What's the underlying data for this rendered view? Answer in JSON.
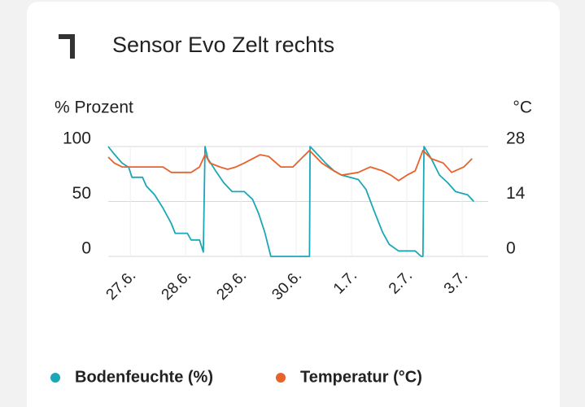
{
  "chart_data": {
    "type": "line",
    "title": "Sensor Evo Zelt rechts",
    "ylabel": "% Prozent",
    "y2label": "°C",
    "xlim": [
      -0.4,
      6.47
    ],
    "xticks": [
      {
        "value": 0,
        "label": "27.6."
      },
      {
        "value": 1,
        "label": "28.6."
      },
      {
        "value": 2,
        "label": "29.6."
      },
      {
        "value": 3,
        "label": "30.6."
      },
      {
        "value": 4,
        "label": "1.7."
      },
      {
        "value": 5,
        "label": "2.7."
      },
      {
        "value": 6,
        "label": "3.7."
      }
    ],
    "ylim": [
      0,
      100
    ],
    "yticks": [
      0,
      50,
      100
    ],
    "y2lim": [
      0,
      28
    ],
    "y2ticks": [
      0,
      14,
      28
    ],
    "grid": true,
    "series": [
      {
        "name": "Bodenfeuchte (%)",
        "color": "#1ba7b5",
        "x": [
          -0.4,
          -0.29,
          -0.15,
          -0.03,
          0.03,
          0.22,
          0.29,
          0.44,
          0.59,
          0.74,
          0.81,
          1.03,
          1.1,
          1.25,
          1.32,
          1.35,
          1.4,
          1.54,
          1.69,
          1.84,
          2.06,
          2.21,
          2.32,
          2.43,
          2.54,
          3.24,
          3.25,
          3.38,
          3.53,
          3.68,
          3.82,
          4.12,
          4.26,
          4.41,
          4.56,
          4.68,
          4.85,
          5.15,
          5.26,
          5.29,
          5.31,
          5.44,
          5.59,
          5.74,
          5.88,
          6.1,
          6.21
        ],
        "values": [
          100,
          93,
          85,
          81,
          72,
          72,
          64,
          56,
          44,
          30,
          21,
          21,
          15,
          15,
          4,
          100,
          89,
          78,
          67,
          59,
          59,
          52,
          39,
          22,
          0,
          0,
          100,
          93,
          85,
          78,
          74,
          70,
          61,
          41,
          22,
          11,
          5,
          5,
          0,
          0,
          100,
          89,
          74,
          67,
          59,
          56,
          50
        ]
      },
      {
        "name": "Temperatur (°C)",
        "color": "#e8622c",
        "axis": "y2",
        "x": [
          -0.4,
          -0.29,
          -0.15,
          0.59,
          0.74,
          1.1,
          1.25,
          1.35,
          1.44,
          1.62,
          1.76,
          1.91,
          2.06,
          2.21,
          2.35,
          2.5,
          2.72,
          2.94,
          3.09,
          3.24,
          3.46,
          3.68,
          3.82,
          4.12,
          4.34,
          4.56,
          4.71,
          4.85,
          5.0,
          5.15,
          5.29,
          5.44,
          5.66,
          5.81,
          6.03,
          6.18
        ],
        "values": [
          25.3,
          23.8,
          22.8,
          22.8,
          21.4,
          21.4,
          22.8,
          25.9,
          23.8,
          22.8,
          22.2,
          22.8,
          23.8,
          24.9,
          25.9,
          25.5,
          22.8,
          22.8,
          24.9,
          27.0,
          23.8,
          21.8,
          20.7,
          21.4,
          22.8,
          21.8,
          20.7,
          19.3,
          20.7,
          21.8,
          27.0,
          24.9,
          23.8,
          21.4,
          22.8,
          24.9
        ]
      }
    ]
  }
}
